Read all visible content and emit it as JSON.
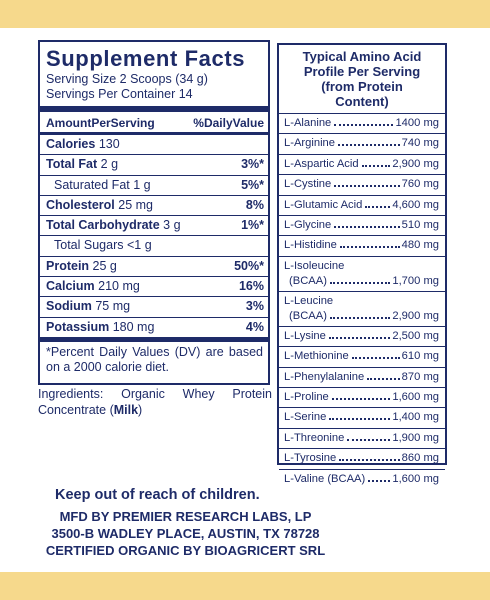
{
  "supplement_facts": {
    "title": "Supplement Facts",
    "serving_size": "Serving Size 2 Scoops (34 g)",
    "servings_per_container": "Servings Per Container 14",
    "header": {
      "amount": "AmountPerServing",
      "daily_value": "%DailyValue"
    },
    "rows": [
      {
        "name": "Calories",
        "amount": "130"
      },
      {
        "name": "Total Fat",
        "amount": "2 g",
        "dv": "3%*"
      },
      {
        "name": "Saturated Fat",
        "amount": "1 g",
        "dv": "5%*",
        "sub": true
      },
      {
        "name": "Cholesterol",
        "amount": "25 mg",
        "dv": "8%"
      },
      {
        "name": "Total Carbohydrate",
        "amount": "3 g",
        "dv": "1%*"
      },
      {
        "name": "Total Sugars",
        "amount": "<1 g",
        "sub": true
      },
      {
        "name": "Protein",
        "amount": "25 g",
        "dv": "50%*"
      },
      {
        "name": "Calcium",
        "amount": "210 mg",
        "dv": "16%"
      },
      {
        "name": "Sodium",
        "amount": "75 mg",
        "dv": "3%"
      },
      {
        "name": "Potassium",
        "amount": "180 mg",
        "dv": "4%"
      }
    ],
    "footnote": "*Percent Daily Values (DV) are based on a 2000 calorie diet."
  },
  "ingredients": {
    "text": "Ingredients: Organic Whey Protein Concentrate (",
    "allergen": "Milk",
    "close": ")"
  },
  "amino_profile": {
    "title": "Typical Amino Acid Profile Per Serving (from Protein Content)",
    "items": [
      {
        "name": "L-Alanine",
        "amount": "1400 mg"
      },
      {
        "name": "L-Arginine",
        "amount": "740 mg"
      },
      {
        "name": "L-Aspartic Acid",
        "amount": "2,900 mg"
      },
      {
        "name": "L-Cystine",
        "amount": "760 mg"
      },
      {
        "name": "L-Glutamic Acid",
        "amount": "4,600 mg"
      },
      {
        "name": "L-Glycine",
        "amount": "510 mg"
      },
      {
        "name": "L-Histidine",
        "amount": "480 mg"
      },
      {
        "name": "L-Isoleucine",
        "qualifier": "(BCAA)",
        "amount": "1,700 mg"
      },
      {
        "name": "L-Leucine",
        "qualifier": "(BCAA)",
        "amount": "2,900 mg"
      },
      {
        "name": "L-Lysine",
        "amount": "2,500 mg"
      },
      {
        "name": "L-Methionine",
        "amount": "610 mg"
      },
      {
        "name": "L-Phenylalanine",
        "amount": "870 mg"
      },
      {
        "name": "L-Proline",
        "amount": "1,600 mg"
      },
      {
        "name": "L-Serine",
        "amount": "1,400 mg"
      },
      {
        "name": "L-Threonine",
        "amount": "1,900 mg"
      },
      {
        "name": "L-Tyrosine",
        "amount": "860 mg"
      },
      {
        "name": "L-Valine (BCAA)",
        "amount": "1,600 mg"
      }
    ]
  },
  "footer": {
    "warning": "Keep out of reach of children.",
    "lines": [
      "MFD BY PREMIER RESEARCH LABS, LP",
      "3500-B WADLEY PLACE, AUSTIN, TX 78728",
      "CERTIFIED ORGANIC BY BIOAGRICERT SRL"
    ]
  }
}
